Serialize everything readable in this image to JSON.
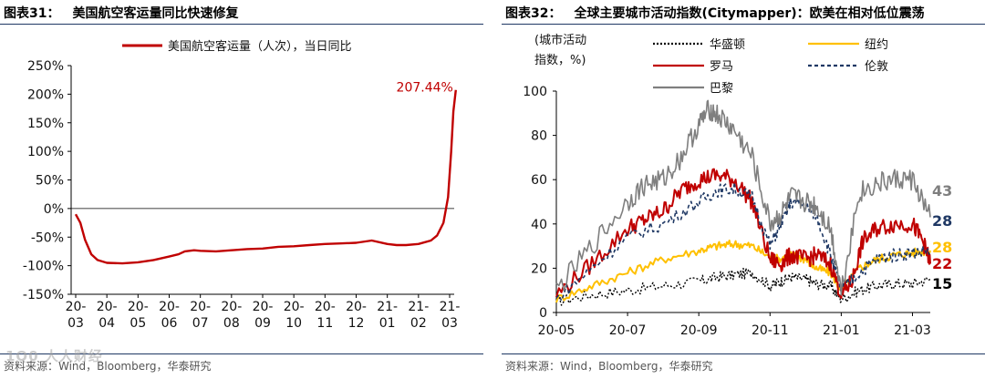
{
  "left": {
    "title_num": "图表31：",
    "title_text": "美国航空客运量同比快速修复",
    "source": "资料来源：Wind，Bloomberg，华泰研究",
    "watermark": "1Q0 人人财经",
    "chart_data": {
      "type": "line",
      "title": "美国航空客运量同比快速修复",
      "ylabel": "",
      "ylim": [
        -150,
        250
      ],
      "yticks": [
        "250%",
        "200%",
        "150%",
        "100%",
        "50%",
        "0%",
        "-50%",
        "-100%",
        "-150%"
      ],
      "ytick_values": [
        250,
        200,
        150,
        100,
        50,
        0,
        -50,
        -100,
        -150
      ],
      "categories": [
        [
          "20-",
          "03"
        ],
        [
          "20-",
          "04"
        ],
        [
          "20-",
          "05"
        ],
        [
          "20-",
          "06"
        ],
        [
          "20-",
          "07"
        ],
        [
          "20-",
          "08"
        ],
        [
          "20-",
          "09"
        ],
        [
          "20-",
          "10"
        ],
        [
          "20-",
          "11"
        ],
        [
          "20-",
          "12"
        ],
        [
          "21-",
          "01"
        ],
        [
          "21-",
          "02"
        ],
        [
          "21-",
          "03"
        ]
      ],
      "series": [
        {
          "name": "美国航空客运量（人次），当日同比",
          "color": "#c00000",
          "x": [
            0,
            0.15,
            0.3,
            0.5,
            0.7,
            1,
            1.5,
            2,
            2.5,
            3,
            3.3,
            3.5,
            3.8,
            4,
            4.5,
            5,
            5.5,
            6,
            6.5,
            7,
            7.5,
            8,
            8.5,
            9,
            9.5,
            10,
            10.3,
            10.6,
            11,
            11.4,
            11.6,
            11.8,
            11.95,
            12.05,
            12.12,
            12.2
          ],
          "values": [
            -10,
            -25,
            -55,
            -80,
            -90,
            -95,
            -96,
            -94,
            -90,
            -84,
            -80,
            -75,
            -73,
            -74,
            -75,
            -73,
            -71,
            -70,
            -67,
            -66,
            -64,
            -62,
            -61,
            -60,
            -56,
            -62,
            -64,
            -64,
            -62,
            -56,
            -47,
            -25,
            20,
            100,
            170,
            207.44
          ]
        }
      ],
      "annotations": [
        {
          "text": "207.44%",
          "x": 12.2,
          "y": 207.44
        }
      ]
    }
  },
  "right": {
    "title_num": "图表32：",
    "title_text": "全球主要城市活动指数(Citymapper)：欧美在相对低位震荡",
    "source": "资料来源：Wind，Bloomberg，华泰研究",
    "chart_data": {
      "type": "line",
      "title": "全球主要城市活动指数(Citymapper)：欧美在相对低位震荡",
      "ylabel": "(城市活动 指数，%)",
      "ylabel_lines": [
        "(城市活动",
        "指数，%)"
      ],
      "ylim": [
        0,
        100
      ],
      "yticks": [
        "100",
        "80",
        "60",
        "40",
        "20",
        "0"
      ],
      "ytick_values": [
        100,
        80,
        60,
        40,
        20,
        0
      ],
      "xlim": [
        0,
        10.5
      ],
      "xticks": [
        "20-05",
        "20-07",
        "20-09",
        "20-11",
        "21-01",
        "21-03"
      ],
      "xtick_values": [
        0,
        2,
        4,
        6,
        8,
        10
      ],
      "series": [
        {
          "name": "华盛顿",
          "color": "#000000",
          "dash": "2,2",
          "x": [
            0,
            1,
            2,
            3,
            4,
            4.5,
            5,
            5.5,
            6,
            6.3,
            6.6,
            7,
            7.3,
            7.7,
            8,
            8.5,
            9,
            9.5,
            10,
            10.5
          ],
          "values": [
            5,
            8,
            10,
            12,
            14,
            16,
            17,
            18,
            12,
            14,
            16,
            15,
            13,
            12,
            6,
            10,
            12,
            13,
            13,
            15
          ],
          "end_label": "15"
        },
        {
          "name": "纽约",
          "color": "#ffc000",
          "dash": "",
          "x": [
            0,
            1,
            2,
            3,
            4,
            4.5,
            5,
            5.5,
            6,
            6.3,
            6.6,
            7,
            7.3,
            7.7,
            8,
            8.5,
            9,
            9.5,
            10,
            10.5
          ],
          "values": [
            6,
            12,
            18,
            24,
            28,
            30,
            31,
            30,
            25,
            24,
            26,
            24,
            20,
            18,
            10,
            20,
            24,
            26,
            27,
            28
          ],
          "end_label": "28"
        },
        {
          "name": "罗马",
          "color": "#c00000",
          "dash": "",
          "x": [
            0,
            1,
            2,
            2.5,
            3,
            3.5,
            4,
            4.5,
            5,
            5.5,
            6,
            6.3,
            6.6,
            7,
            7.3,
            7.7,
            8,
            8.3,
            8.6,
            9,
            9.5,
            10,
            10.3,
            10.5
          ],
          "values": [
            8,
            22,
            38,
            42,
            46,
            55,
            60,
            62,
            60,
            50,
            24,
            22,
            26,
            24,
            26,
            22,
            8,
            14,
            32,
            38,
            40,
            40,
            32,
            22
          ],
          "end_label": "22"
        },
        {
          "name": "伦敦",
          "color": "#1f3864",
          "dash": "4,3",
          "x": [
            0,
            1,
            2,
            3,
            4,
            4.5,
            5,
            5.5,
            6,
            6.3,
            6.6,
            7,
            7.3,
            7.7,
            8,
            8.5,
            9,
            9.5,
            10,
            10.5
          ],
          "values": [
            6,
            20,
            34,
            40,
            50,
            55,
            56,
            52,
            30,
            40,
            50,
            48,
            44,
            26,
            10,
            18,
            24,
            26,
            27,
            28
          ],
          "end_label": "28"
        },
        {
          "name": "巴黎",
          "color": "#7f7f7f",
          "dash": "",
          "x": [
            0,
            1,
            2,
            2.5,
            3,
            3.5,
            4,
            4.3,
            4.6,
            5,
            5.5,
            6,
            6.3,
            6.6,
            7,
            7.3,
            7.7,
            8,
            8.5,
            9,
            9.5,
            10,
            10.5
          ],
          "values": [
            10,
            30,
            50,
            58,
            60,
            70,
            85,
            92,
            88,
            82,
            70,
            40,
            44,
            52,
            50,
            48,
            38,
            10,
            54,
            58,
            60,
            60,
            43
          ],
          "end_label": "43"
        }
      ]
    }
  }
}
